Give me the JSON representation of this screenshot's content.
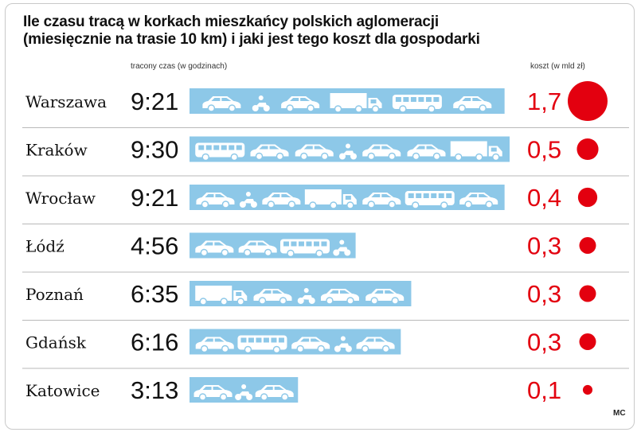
{
  "title_line1": "Ile czasu tracą w korkach mieszkańcy polskich aglomeracji",
  "title_line2": "(miesięcznie na trasie 10 km) i jaki jest tego koszt dla gospodarki",
  "time_label": "tracony czas (w godzinach)",
  "cost_label": "koszt (w mld zł)",
  "source": "MC",
  "colors": {
    "bar": "#8dc8e8",
    "cost": "#e3000f",
    "divider": "#b9b9b9"
  },
  "chart_data": {
    "type": "bar",
    "orientation": "horizontal",
    "categories": [
      "Warszawa",
      "Kraków",
      "Wrocław",
      "Łódź",
      "Poznań",
      "Gdańsk",
      "Katowice"
    ],
    "time_labels": [
      "9:21",
      "9:30",
      "9:21",
      "4:56",
      "6:35",
      "6:16",
      "3:13"
    ],
    "series": [
      {
        "values": [
          9.35,
          9.5,
          9.35,
          4.93,
          6.58,
          6.27,
          3.22
        ]
      },
      {
        "values": [
          1.7,
          0.5,
          0.4,
          0.3,
          0.3,
          0.3,
          0.1
        ]
      }
    ],
    "cost_labels": [
      "1,7",
      "0,5",
      "0,4",
      "0,3",
      "0,3",
      "0,3",
      "0,1"
    ],
    "vehicles": [
      [
        "car",
        "moto",
        "car",
        "truck",
        "bus",
        "car"
      ],
      [
        "bus",
        "car",
        "car",
        "moto",
        "car",
        "car",
        "truck"
      ],
      [
        "car",
        "moto",
        "car",
        "truck",
        "car",
        "bus",
        "car"
      ],
      [
        "car",
        "car",
        "bus",
        "moto"
      ],
      [
        "truck",
        "car",
        "moto",
        "car",
        "car"
      ],
      [
        "car",
        "bus",
        "car",
        "moto",
        "car"
      ],
      [
        "car",
        "moto",
        "car"
      ]
    ]
  }
}
